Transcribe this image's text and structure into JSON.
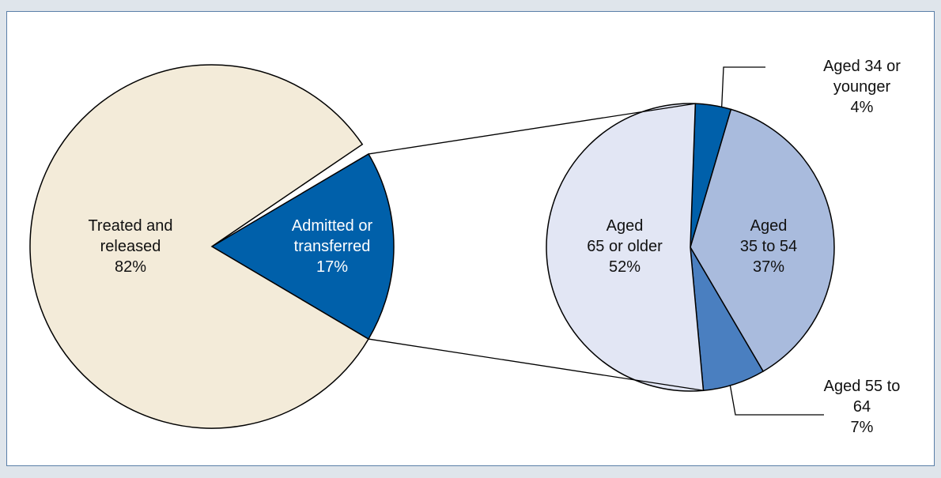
{
  "chart_data": [
    {
      "type": "pie",
      "categories": [
        "Treated and\nreleased",
        "Admitted or\ntransferred"
      ],
      "values": [
        82,
        17
      ],
      "value_labels": [
        "82%",
        "17%"
      ],
      "colors": [
        "#f3ebd9",
        "#0060aa"
      ]
    },
    {
      "type": "pie",
      "categories": [
        "Aged 34 or younger",
        "Aged\n35 to 54",
        "Aged 55 to 64",
        "Aged\n65 or older"
      ],
      "values": [
        4,
        37,
        7,
        52
      ],
      "value_labels": [
        "4%",
        "37%",
        "7%",
        "52%"
      ],
      "colors": [
        "#0060aa",
        "#a9bbdd",
        "#4a7fc0",
        "#e2e6f4"
      ]
    }
  ]
}
